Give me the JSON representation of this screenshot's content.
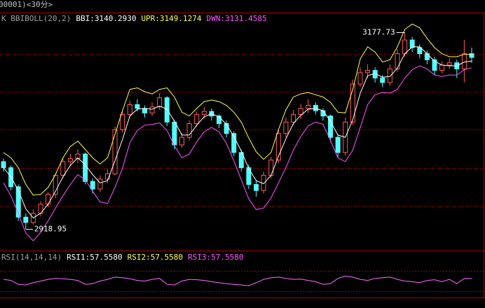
{
  "window_title": "00001)<30分>",
  "chart_data": [
    {
      "type": "candlestick",
      "indicator": "K BBIBOLL(20,2)",
      "readouts": [
        {
          "label": "BBI:3140.2930",
          "color": "#ffffff"
        },
        {
          "label": "UPR:3149.1274",
          "color": "#ffff54"
        },
        {
          "label": "DWN:3131.4585",
          "color": "#ff54ff"
        }
      ],
      "up_color": "#ff5a5a",
      "down_color": "#54fcfc",
      "ylim": [
        2891,
        3204
      ],
      "gridlines": [
        3150,
        3100,
        3050,
        3000,
        2950
      ],
      "ohlc": [
        [
          3008,
          3012,
          2995,
          3000
        ],
        [
          3000,
          3003,
          2970,
          2975
        ],
        [
          2975,
          2978,
          2930,
          2935
        ],
        [
          2935,
          2940,
          2918.95,
          2928
        ],
        [
          2928,
          2945,
          2925,
          2940
        ],
        [
          2940,
          2956,
          2936,
          2952
        ],
        [
          2952,
          2968,
          2948,
          2965
        ],
        [
          2965,
          2993,
          2960,
          2990
        ],
        [
          2990,
          3012,
          2986,
          3008
        ],
        [
          3008,
          3018,
          3002,
          3012
        ],
        [
          3012,
          3024,
          3006,
          3018
        ],
        [
          3018,
          3020,
          2978,
          2982
        ],
        [
          2982,
          2986,
          2966,
          2972
        ],
        [
          2972,
          2990,
          2968,
          2985
        ],
        [
          2985,
          2998,
          2980,
          2992
        ],
        [
          2992,
          3054,
          2990,
          3050
        ],
        [
          3050,
          3074,
          3046,
          3070
        ],
        [
          3070,
          3088,
          3066,
          3083
        ],
        [
          3083,
          3090,
          3074,
          3078
        ],
        [
          3078,
          3082,
          3066,
          3072
        ],
        [
          3072,
          3086,
          3068,
          3080
        ],
        [
          3080,
          3098,
          3076,
          3092
        ],
        [
          3092,
          3094,
          3055,
          3060
        ],
        [
          3060,
          3063,
          3024,
          3030
        ],
        [
          3030,
          3046,
          3026,
          3040
        ],
        [
          3040,
          3062,
          3036,
          3058
        ],
        [
          3058,
          3074,
          3054,
          3070
        ],
        [
          3070,
          3080,
          3064,
          3074
        ],
        [
          3074,
          3078,
          3062,
          3068
        ],
        [
          3068,
          3070,
          3052,
          3058
        ],
        [
          3058,
          3062,
          3040,
          3045
        ],
        [
          3045,
          3048,
          3015,
          3020
        ],
        [
          3020,
          3024,
          2995,
          3000
        ],
        [
          3000,
          3004,
          2972,
          2978
        ],
        [
          2978,
          2984,
          2962,
          2970
        ],
        [
          2970,
          2995,
          2966,
          2990
        ],
        [
          2990,
          3014,
          2986,
          3010
        ],
        [
          3010,
          3050,
          3006,
          3045
        ],
        [
          3045,
          3066,
          3040,
          3060
        ],
        [
          3060,
          3076,
          3056,
          3070
        ],
        [
          3070,
          3084,
          3064,
          3078
        ],
        [
          3078,
          3090,
          3072,
          3082
        ],
        [
          3082,
          3086,
          3070,
          3075
        ],
        [
          3075,
          3078,
          3062,
          3068
        ],
        [
          3068,
          3070,
          3034,
          3040
        ],
        [
          3040,
          3044,
          3014,
          3020
        ],
        [
          3020,
          3066,
          3016,
          3060
        ],
        [
          3060,
          3116,
          3056,
          3110
        ],
        [
          3110,
          3132,
          3106,
          3125
        ],
        [
          3125,
          3136,
          3118,
          3128
        ],
        [
          3128,
          3132,
          3112,
          3118
        ],
        [
          3118,
          3122,
          3106,
          3112
        ],
        [
          3112,
          3136,
          3108,
          3130
        ],
        [
          3130,
          3156,
          3126,
          3150
        ],
        [
          3150,
          3177.73,
          3146,
          3168
        ],
        [
          3168,
          3172,
          3152,
          3158
        ],
        [
          3158,
          3162,
          3144,
          3150
        ],
        [
          3150,
          3154,
          3136,
          3142
        ],
        [
          3142,
          3146,
          3122,
          3128
        ],
        [
          3128,
          3140,
          3124,
          3135
        ],
        [
          3135,
          3144,
          3130,
          3138
        ],
        [
          3138,
          3142,
          3118,
          3130
        ],
        [
          3130,
          3168,
          3112,
          3150
        ],
        [
          3150,
          3158,
          3138,
          3145
        ]
      ],
      "series": [
        {
          "color": "#ffffff",
          "values": [
            3000,
            2988,
            2970,
            2946,
            2934,
            2940,
            2952,
            2969,
            2988,
            3003,
            3013,
            3004,
            2991,
            2980,
            2983,
            3009,
            3037,
            3068,
            3077,
            3078,
            3077,
            3081,
            3077,
            3061,
            3043,
            3043,
            3056,
            3067,
            3071,
            3067,
            3057,
            3041,
            3022,
            2999,
            2983,
            2979,
            2990,
            3015,
            3038,
            3058,
            3069,
            3077,
            3078,
            3075,
            3061,
            3043,
            3040,
            3063,
            3098,
            3121,
            3124,
            3119,
            3120,
            3131,
            3150,
            3159,
            3159,
            3150,
            3140,
            3135,
            3134,
            3134,
            3139,
            3140.293
          ]
        },
        {
          "color": "#ffff54",
          "values": [
            3020,
            3013,
            3000,
            2978,
            2964,
            2965,
            2974,
            2991,
            3013,
            3028,
            3035,
            3024,
            3013,
            3005,
            3013,
            3044,
            3075,
            3103,
            3105,
            3100,
            3097,
            3103,
            3105,
            3093,
            3073,
            3068,
            3078,
            3087,
            3089,
            3087,
            3082,
            3073,
            3060,
            3039,
            3021,
            3011,
            3020,
            3050,
            3076,
            3093,
            3097,
            3099,
            3096,
            3093,
            3086,
            3073,
            3072,
            3103,
            3143,
            3159,
            3152,
            3139,
            3142,
            3159,
            3182,
            3189,
            3184,
            3170,
            3158,
            3150,
            3146,
            3146,
            3149,
            3149.1274
          ]
        },
        {
          "color": "#ff54ff",
          "values": [
            2980,
            2963,
            2940,
            2914,
            2904,
            2915,
            2930,
            2947,
            2963,
            2978,
            2991,
            2984,
            2969,
            2955,
            2953,
            2974,
            2999,
            3033,
            3049,
            3056,
            3057,
            3059,
            3049,
            3029,
            3013,
            3018,
            3034,
            3047,
            3053,
            3047,
            3032,
            3009,
            2984,
            2959,
            2945,
            2947,
            2960,
            2980,
            3000,
            3023,
            3041,
            3055,
            3060,
            3057,
            3036,
            3013,
            3008,
            3023,
            3053,
            3083,
            3096,
            3099,
            3098,
            3103,
            3118,
            3129,
            3134,
            3130,
            3122,
            3120,
            3122,
            3122,
            3129,
            3131.4585
          ]
        }
      ]
    },
    {
      "type": "line",
      "indicator": "RSI(14,14,14)",
      "readouts": [
        {
          "label": "RSI1:57.5580",
          "color": "#ffffff"
        },
        {
          "label": "RSI2:57.5580",
          "color": "#ffff54"
        },
        {
          "label": "RSI3:57.5580",
          "color": "#ff54ff"
        }
      ],
      "ylim": [
        0,
        100
      ],
      "gridlines": [
        80,
        20
      ],
      "series": [
        {
          "color": "#ff6cff",
          "values": [
            55,
            52,
            40,
            38,
            45,
            50,
            55,
            58,
            57,
            55,
            52,
            40,
            42,
            50,
            55,
            62,
            60,
            57,
            52,
            50,
            55,
            58,
            40,
            38,
            50,
            55,
            54,
            52,
            48,
            45,
            42,
            40,
            38,
            36,
            45,
            55,
            60,
            62,
            58,
            55,
            56,
            52,
            48,
            40,
            42,
            58,
            65,
            62,
            55,
            52,
            58,
            60,
            62,
            55,
            50,
            48,
            45,
            52,
            54,
            48,
            55,
            42,
            58,
            57.558
          ]
        }
      ]
    }
  ]
}
